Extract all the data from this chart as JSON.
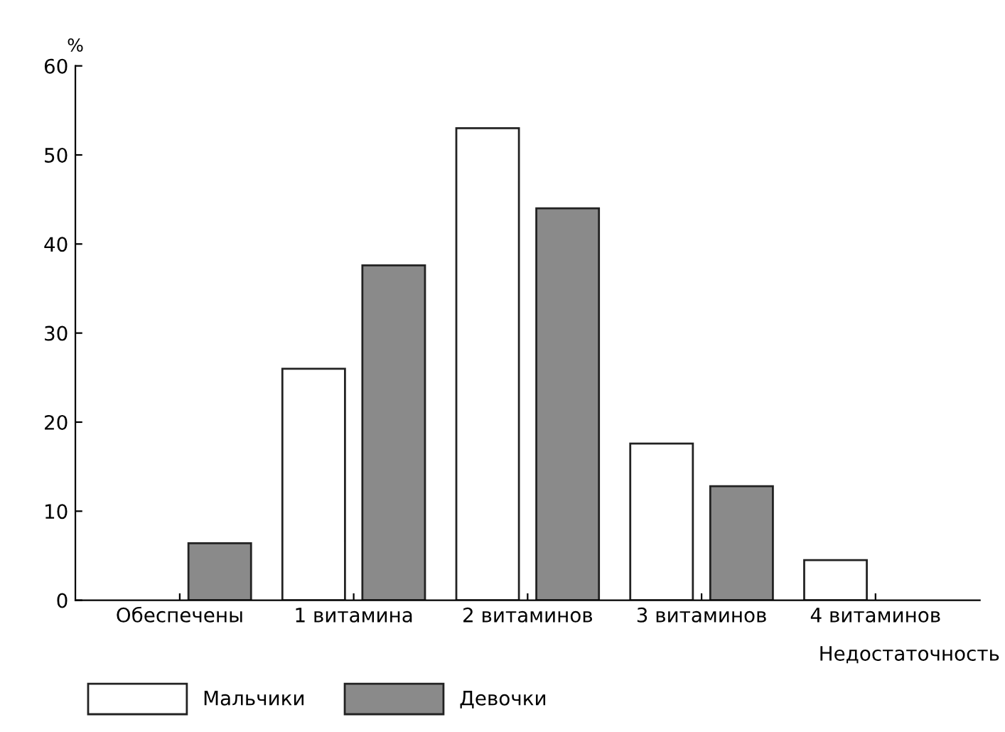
{
  "chart_data": {
    "type": "bar",
    "ylabel": "%",
    "xlabel": "Недостаточность",
    "categories": [
      "Обеспечены",
      "1 витамина",
      "2 витаминов",
      "3 витаминов",
      "4 витаминов"
    ],
    "series": [
      {
        "name": "Мальчики",
        "color": "#ffffff",
        "values": [
          null,
          26,
          53,
          17.6,
          4.5
        ]
      },
      {
        "name": "Девочки",
        "color": "#8a8a8a",
        "values": [
          6.4,
          37.6,
          44,
          12.8,
          null
        ]
      }
    ],
    "ylim": [
      0,
      60
    ],
    "yticks": [
      0,
      10,
      20,
      30,
      40,
      50,
      60
    ],
    "grid": false,
    "legend": "bottom left"
  }
}
